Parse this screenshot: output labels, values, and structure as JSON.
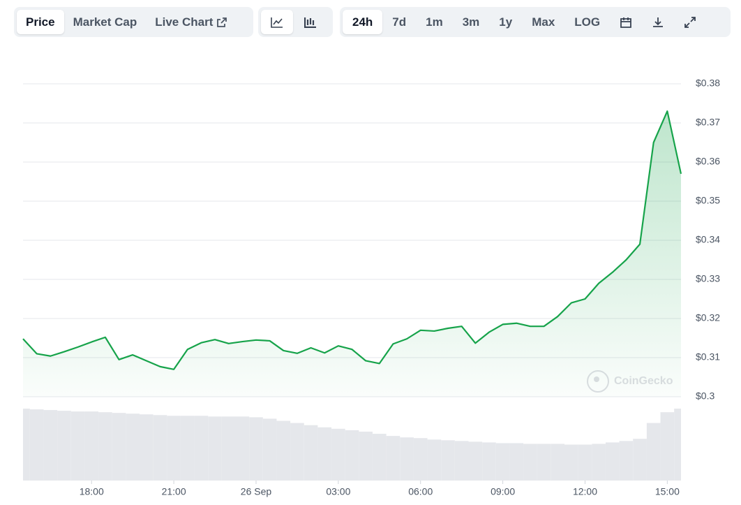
{
  "toolbar": {
    "tabs": [
      "Price",
      "Market Cap",
      "Live Chart"
    ],
    "ranges": [
      "24h",
      "7d",
      "1m",
      "3m",
      "1y",
      "Max",
      "LOG"
    ]
  },
  "watermark": "CoinGecko",
  "chart_data": {
    "type": "line",
    "x": [
      "15:30",
      "16:00",
      "16:30",
      "17:00",
      "17:30",
      "18:00",
      "18:30",
      "19:00",
      "19:30",
      "20:00",
      "20:30",
      "21:00",
      "21:30",
      "22:00",
      "22:30",
      "23:00",
      "23:30",
      "26 Sep",
      "00:30",
      "01:00",
      "01:30",
      "02:00",
      "02:30",
      "03:00",
      "03:30",
      "04:00",
      "04:30",
      "05:00",
      "05:30",
      "06:00",
      "06:30",
      "07:00",
      "07:30",
      "08:00",
      "08:30",
      "09:00",
      "09:30",
      "10:00",
      "10:30",
      "11:00",
      "11:30",
      "12:00",
      "12:30",
      "13:00",
      "13:30",
      "14:00",
      "14:30",
      "15:00",
      "15:30"
    ],
    "series": [
      {
        "color": "#16a34a",
        "values": [
          0.3148,
          0.311,
          0.3104,
          0.3115,
          0.3127,
          0.314,
          0.3152,
          0.3095,
          0.3107,
          0.3092,
          0.3077,
          0.307,
          0.3121,
          0.3138,
          0.3146,
          0.3136,
          0.3141,
          0.3145,
          0.3143,
          0.3118,
          0.3111,
          0.3125,
          0.3112,
          0.313,
          0.3121,
          0.3092,
          0.3085,
          0.3135,
          0.3148,
          0.317,
          0.3168,
          0.3175,
          0.318,
          0.3137,
          0.3165,
          0.3185,
          0.3188,
          0.318,
          0.318,
          0.3205,
          0.324,
          0.325,
          0.329,
          0.3318,
          0.335,
          0.339,
          0.365,
          0.373,
          0.357
        ]
      },
      {
        "color": "#e5e7eb",
        "values": [
          100,
          99,
          98,
          97,
          96,
          96,
          95,
          94,
          93,
          92,
          91,
          90,
          90,
          90,
          89,
          89,
          89,
          88,
          86,
          83,
          80,
          77,
          74,
          72,
          70,
          68,
          65,
          62,
          60,
          59,
          57,
          56,
          55,
          54,
          53,
          52,
          52,
          51,
          51,
          51,
          50,
          50,
          51,
          53,
          55,
          58,
          80,
          95,
          100
        ]
      }
    ],
    "ylim": [
      0.3,
      0.38
    ],
    "yticks": [
      {
        "value": 0.3,
        "label": "$0.3"
      },
      {
        "value": 0.31,
        "label": "$0.31"
      },
      {
        "value": 0.32,
        "label": "$0.32"
      },
      {
        "value": 0.33,
        "label": "$0.33"
      },
      {
        "value": 0.34,
        "label": "$0.34"
      },
      {
        "value": 0.35,
        "label": "$0.35"
      },
      {
        "value": 0.36,
        "label": "$0.36"
      },
      {
        "value": 0.37,
        "label": "$0.37"
      },
      {
        "value": 0.38,
        "label": "$0.38"
      }
    ],
    "xticks": [
      "18:00",
      "21:00",
      "26 Sep",
      "03:00",
      "06:00",
      "09:00",
      "12:00",
      "15:00"
    ],
    "grid": true
  }
}
